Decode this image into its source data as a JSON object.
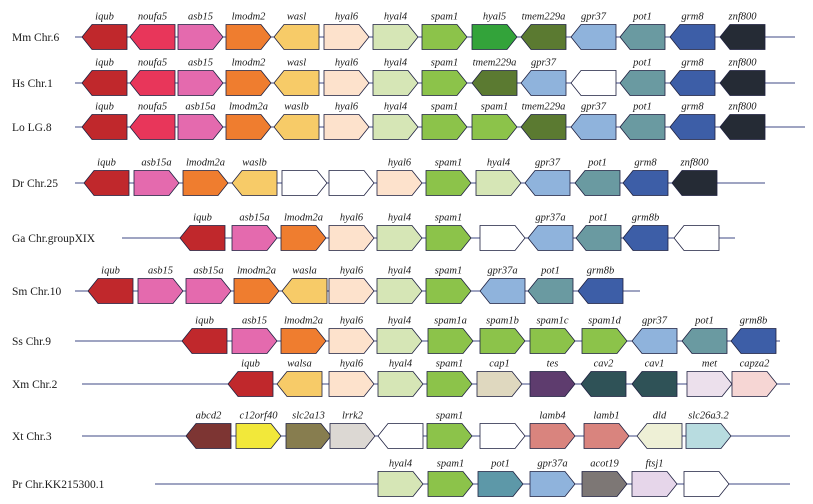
{
  "colors": {
    "iqub": "#c0282c",
    "noufa5": "#e8365a",
    "asb15": "#e46aae",
    "lmodm2": "#ef7d2f",
    "wasl": "#f7cb68",
    "hyal6": "#fde2cc",
    "hyal4": "#d6e6b6",
    "spam1": "#8cc34a",
    "hyal5": "#33a33a",
    "tmem229a": "#5b7a31",
    "gpr37": "#8fb3dc",
    "pot1": "#6a9aa1",
    "grm8": "#3d5ea7",
    "znf800": "#252b35",
    "empty": "#ffffff",
    "cap1": "#dfd8bf",
    "tes": "#5e3c6e",
    "cav2": "#2f5257",
    "met": "#ece0ec",
    "capza2": "#f6d6d4",
    "abcd2": "#7d3533",
    "c12orf40": "#f2e83a",
    "slc2a13": "#877d4f",
    "lrrk2": "#dcd8d3",
    "lamb4": "#d9847e",
    "dld": "#eef0d6",
    "slc26a3_2": "#b8dce0",
    "pot1_pr": "#5d98a8",
    "acot19": "#7d7775",
    "ftsj1": "#e6d6ea"
  },
  "rows": [
    {
      "label": "Mm Chr.6",
      "genes": [
        {
          "name": "iqub",
          "color": "iqub",
          "dir": "L"
        },
        {
          "name": "noufa5",
          "color": "noufa5",
          "dir": "L"
        },
        {
          "name": "asb15",
          "color": "asb15",
          "dir": "R"
        },
        {
          "name": "lmodm2",
          "color": "lmodm2",
          "dir": "R"
        },
        {
          "name": "wasl",
          "color": "wasl",
          "dir": "L"
        },
        {
          "name": "hyal6",
          "color": "hyal6",
          "dir": "R"
        },
        {
          "name": "hyal4",
          "color": "hyal4",
          "dir": "R"
        },
        {
          "name": "spam1",
          "color": "spam1",
          "dir": "R"
        },
        {
          "name": "hyal5",
          "color": "hyal5",
          "dir": "R"
        },
        {
          "name": "tmem229a",
          "color": "tmem229a",
          "dir": "L"
        },
        {
          "name": "gpr37",
          "color": "gpr37",
          "dir": "L"
        },
        {
          "name": "pot1",
          "color": "pot1",
          "dir": "L"
        },
        {
          "name": "grm8",
          "color": "grm8",
          "dir": "L"
        },
        {
          "name": "znf800",
          "color": "znf800",
          "dir": "L"
        }
      ]
    },
    {
      "label": "Hs Chr.1",
      "genes": [
        {
          "name": "iqub",
          "color": "iqub",
          "dir": "L"
        },
        {
          "name": "noufa5",
          "color": "noufa5",
          "dir": "L"
        },
        {
          "name": "asb15",
          "color": "asb15",
          "dir": "R"
        },
        {
          "name": "lmodm2",
          "color": "lmodm2",
          "dir": "R"
        },
        {
          "name": "wasl",
          "color": "wasl",
          "dir": "L"
        },
        {
          "name": "hyal6",
          "color": "hyal6",
          "dir": "R"
        },
        {
          "name": "hyal4",
          "color": "hyal4",
          "dir": "R"
        },
        {
          "name": "spam1",
          "color": "spam1",
          "dir": "R"
        },
        {
          "name": "tmem229a",
          "color": "tmem229a",
          "dir": "L"
        },
        {
          "name": "gpr37",
          "color": "gpr37",
          "dir": "L"
        },
        {
          "name": "",
          "color": "empty",
          "dir": "L"
        },
        {
          "name": "pot1",
          "color": "pot1",
          "dir": "L"
        },
        {
          "name": "grm8",
          "color": "grm8",
          "dir": "L"
        },
        {
          "name": "znf800",
          "color": "znf800",
          "dir": "L"
        }
      ]
    },
    {
      "label": "Lo LG.8",
      "genes": [
        {
          "name": "iqub",
          "color": "iqub",
          "dir": "L"
        },
        {
          "name": "noufa5",
          "color": "noufa5",
          "dir": "L"
        },
        {
          "name": "asb15a",
          "color": "asb15",
          "dir": "R"
        },
        {
          "name": "lmodm2a",
          "color": "lmodm2",
          "dir": "R"
        },
        {
          "name": "waslb",
          "color": "wasl",
          "dir": "L"
        },
        {
          "name": "hyal6",
          "color": "hyal6",
          "dir": "R"
        },
        {
          "name": "hyal4",
          "color": "hyal4",
          "dir": "R"
        },
        {
          "name": "spam1",
          "color": "spam1",
          "dir": "R"
        },
        {
          "name": "spam1",
          "color": "spam1",
          "dir": "R"
        },
        {
          "name": "tmem229a",
          "color": "tmem229a",
          "dir": "L"
        },
        {
          "name": "gpr37",
          "color": "gpr37",
          "dir": "L"
        },
        {
          "name": "pot1",
          "color": "pot1",
          "dir": "L"
        },
        {
          "name": "grm8",
          "color": "grm8",
          "dir": "L"
        },
        {
          "name": "znf800",
          "color": "znf800",
          "dir": "L"
        }
      ]
    },
    {
      "label": "Dr Chr.25",
      "genes": [
        {
          "name": "iqub",
          "color": "iqub",
          "dir": "L"
        },
        {
          "name": "asb15a",
          "color": "asb15",
          "dir": "R"
        },
        {
          "name": "lmodm2a",
          "color": "lmodm2",
          "dir": "R"
        },
        {
          "name": "waslb",
          "color": "wasl",
          "dir": "L"
        },
        {
          "name": "",
          "color": "empty",
          "dir": "R"
        },
        {
          "name": "",
          "color": "empty",
          "dir": "R"
        },
        {
          "name": "hyal6",
          "color": "hyal6",
          "dir": "R"
        },
        {
          "name": "spam1",
          "color": "spam1",
          "dir": "R"
        },
        {
          "name": "hyal4",
          "color": "hyal4",
          "dir": "R"
        },
        {
          "name": "gpr37",
          "color": "gpr37",
          "dir": "L"
        },
        {
          "name": "pot1",
          "color": "pot1",
          "dir": "L"
        },
        {
          "name": "grm8",
          "color": "grm8",
          "dir": "L"
        },
        {
          "name": "znf800",
          "color": "znf800",
          "dir": "L"
        }
      ]
    },
    {
      "label": "Ga Chr.groupXIX",
      "genes": [
        {
          "name": "iqub",
          "color": "iqub",
          "dir": "L"
        },
        {
          "name": "asb15a",
          "color": "asb15",
          "dir": "R"
        },
        {
          "name": "lmodm2a",
          "color": "lmodm2",
          "dir": "R"
        },
        {
          "name": "hyal6",
          "color": "hyal6",
          "dir": "R"
        },
        {
          "name": "hyal4",
          "color": "hyal4",
          "dir": "R"
        },
        {
          "name": "spam1",
          "color": "spam1",
          "dir": "R"
        },
        {
          "name": "",
          "color": "empty",
          "dir": "R"
        },
        {
          "name": "gpr37a",
          "color": "gpr37",
          "dir": "L"
        },
        {
          "name": "pot1",
          "color": "pot1",
          "dir": "L"
        },
        {
          "name": "grm8b",
          "color": "grm8",
          "dir": "L"
        },
        {
          "name": "",
          "color": "empty",
          "dir": "L"
        }
      ]
    },
    {
      "label": "Sm Chr.10",
      "genes": [
        {
          "name": "iqub",
          "color": "iqub",
          "dir": "L"
        },
        {
          "name": "asb15",
          "color": "asb15",
          "dir": "R"
        },
        {
          "name": "asb15a",
          "color": "asb15",
          "dir": "R"
        },
        {
          "name": "lmodm2a",
          "color": "lmodm2",
          "dir": "R"
        },
        {
          "name": "wasla",
          "color": "wasl",
          "dir": "L"
        },
        {
          "name": "hyal6",
          "color": "hyal6",
          "dir": "R"
        },
        {
          "name": "hyal4",
          "color": "hyal4",
          "dir": "R"
        },
        {
          "name": "spam1",
          "color": "spam1",
          "dir": "R"
        },
        {
          "name": "gpr37a",
          "color": "gpr37",
          "dir": "L"
        },
        {
          "name": "pot1",
          "color": "pot1",
          "dir": "L"
        },
        {
          "name": "grm8b",
          "color": "grm8",
          "dir": "L"
        }
      ]
    },
    {
      "label": "Ss Chr.9",
      "genes": [
        {
          "name": "iqub",
          "color": "iqub",
          "dir": "L"
        },
        {
          "name": "asb15",
          "color": "asb15",
          "dir": "R"
        },
        {
          "name": "lmodm2a",
          "color": "lmodm2",
          "dir": "R"
        },
        {
          "name": "hyal6",
          "color": "hyal6",
          "dir": "R"
        },
        {
          "name": "hyal4",
          "color": "hyal4",
          "dir": "R"
        },
        {
          "name": "spam1a",
          "color": "spam1",
          "dir": "R"
        },
        {
          "name": "spam1b",
          "color": "spam1",
          "dir": "R"
        },
        {
          "name": "spam1c",
          "color": "spam1",
          "dir": "R"
        },
        {
          "name": "spam1d",
          "color": "spam1",
          "dir": "R"
        },
        {
          "name": "gpr37",
          "color": "gpr37",
          "dir": "L"
        },
        {
          "name": "pot1",
          "color": "pot1",
          "dir": "L"
        },
        {
          "name": "grm8b",
          "color": "grm8",
          "dir": "L"
        }
      ]
    },
    {
      "label": "Xm Chr.2",
      "genes": [
        {
          "name": "iqub",
          "color": "iqub",
          "dir": "L"
        },
        {
          "name": "walsa",
          "color": "wasl",
          "dir": "L"
        },
        {
          "name": "hyal6",
          "color": "hyal6",
          "dir": "R"
        },
        {
          "name": "hyal4",
          "color": "hyal4",
          "dir": "R"
        },
        {
          "name": "spam1",
          "color": "spam1",
          "dir": "R"
        },
        {
          "name": "cap1",
          "color": "cap1",
          "dir": "R"
        },
        {
          "name": "tes",
          "color": "tes",
          "dir": "R"
        },
        {
          "name": "cav2",
          "color": "cav2",
          "dir": "L"
        },
        {
          "name": "cav1",
          "color": "cav2",
          "dir": "L"
        },
        {
          "name": "met",
          "color": "met",
          "dir": "R"
        },
        {
          "name": "capza2",
          "color": "capza2",
          "dir": "R"
        }
      ]
    },
    {
      "label": "Xt Chr.3",
      "genes": [
        {
          "name": "abcd2",
          "color": "abcd2",
          "dir": "L"
        },
        {
          "name": "c12orf40",
          "color": "c12orf40",
          "dir": "R"
        },
        {
          "name": "slc2a13",
          "color": "slc2a13",
          "dir": "R"
        },
        {
          "name": "lrrk2",
          "color": "lrrk2",
          "dir": "R"
        },
        {
          "name": "",
          "color": "empty",
          "dir": "L"
        },
        {
          "name": "spam1",
          "color": "spam1",
          "dir": "R"
        },
        {
          "name": "",
          "color": "empty",
          "dir": "R"
        },
        {
          "name": "lamb4",
          "color": "lamb4",
          "dir": "R"
        },
        {
          "name": "lamb1",
          "color": "lamb4",
          "dir": "R"
        },
        {
          "name": "dld",
          "color": "dld",
          "dir": "L"
        },
        {
          "name": "slc26a3.2",
          "color": "slc26a3_2",
          "dir": "R"
        }
      ]
    },
    {
      "label": "Pr Chr.KK215300.1",
      "genes": [
        {
          "name": "hyal4",
          "color": "hyal4",
          "dir": "R"
        },
        {
          "name": "spam1",
          "color": "spam1",
          "dir": "R"
        },
        {
          "name": "pot1",
          "color": "pot1_pr",
          "dir": "R"
        },
        {
          "name": "gpr37a",
          "color": "gpr37",
          "dir": "R"
        },
        {
          "name": "acot19",
          "color": "acot19",
          "dir": "R"
        },
        {
          "name": "ftsj1",
          "color": "ftsj1",
          "dir": "R"
        },
        {
          "name": "",
          "color": "empty",
          "dir": "R"
        }
      ]
    }
  ]
}
